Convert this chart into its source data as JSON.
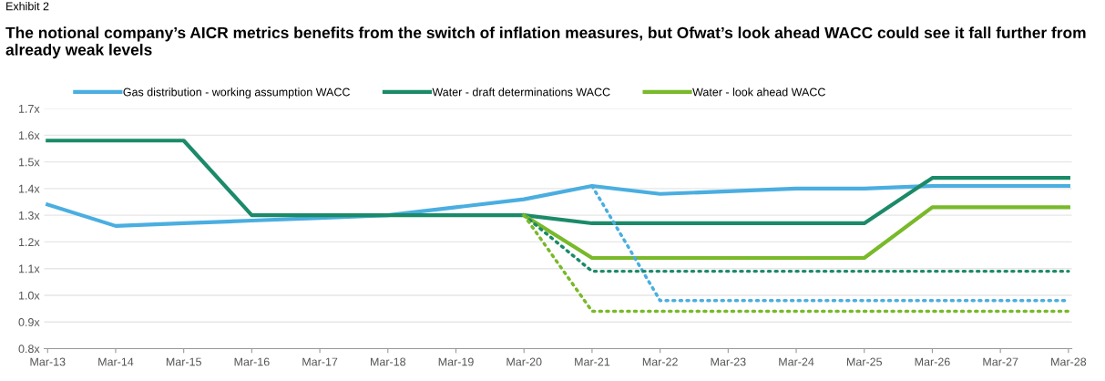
{
  "chart_data": {
    "type": "line",
    "title": "The notional company’s AICR metrics benefits from the switch of inflation measures, but Ofwat’s look ahead WACC could see it fall further from already weak levels",
    "annotations": [
      "Exhibit 2"
    ],
    "categories": [
      "Mar-13",
      "Mar-14",
      "Mar-15",
      "Mar-16",
      "Mar-17",
      "Mar-18",
      "Mar-19",
      "Mar-20",
      "Mar-21",
      "Mar-22",
      "Mar-23",
      "Mar-24",
      "Mar-25",
      "Mar-26",
      "Mar-27",
      "Mar-28"
    ],
    "series": [
      {
        "name": "Gas distribution - working assumption WACC",
        "color": "#4aaee0",
        "line_style": "solid",
        "values": [
          1.34,
          1.26,
          1.27,
          1.28,
          1.29,
          1.3,
          1.33,
          1.36,
          1.41,
          1.38,
          1.39,
          1.4,
          1.4,
          1.41,
          1.41,
          1.41
        ]
      },
      {
        "name": "Water - draft determinations WACC",
        "color": "#1b8a68",
        "line_style": "solid",
        "values": [
          1.58,
          1.58,
          1.58,
          1.3,
          1.3,
          1.3,
          1.3,
          1.3,
          1.27,
          1.27,
          1.27,
          1.27,
          1.27,
          1.44,
          1.44,
          1.44
        ]
      },
      {
        "name": "Water - look ahead WACC",
        "color": "#79b92a",
        "line_style": "solid",
        "values": [
          null,
          null,
          null,
          null,
          null,
          null,
          null,
          1.3,
          1.14,
          1.14,
          1.14,
          1.14,
          1.14,
          1.33,
          1.33,
          1.33
        ]
      },
      {
        "color": "#4aaee0",
        "line_style": "dotted",
        "values": [
          null,
          null,
          null,
          null,
          null,
          null,
          null,
          null,
          1.41,
          0.98,
          0.98,
          0.98,
          0.98,
          0.98,
          0.98,
          0.98
        ]
      },
      {
        "color": "#1b8a68",
        "line_style": "dotted",
        "values": [
          null,
          null,
          null,
          null,
          null,
          null,
          null,
          1.3,
          1.09,
          1.09,
          1.09,
          1.09,
          1.09,
          1.09,
          1.09,
          1.09
        ]
      },
      {
        "color": "#79b92a",
        "line_style": "dotted",
        "values": [
          null,
          null,
          null,
          null,
          null,
          null,
          null,
          1.3,
          0.94,
          0.94,
          0.94,
          0.94,
          0.94,
          0.94,
          0.94,
          0.94
        ]
      }
    ],
    "ylim": [
      0.8,
      1.7
    ],
    "yticks": [
      {
        "value": 0.8,
        "label": "0.8x"
      },
      {
        "value": 0.9,
        "label": "0.9x"
      },
      {
        "value": 1.0,
        "label": "1.0x"
      },
      {
        "value": 1.1,
        "label": "1.1x"
      },
      {
        "value": 1.2,
        "label": "1.2x"
      },
      {
        "value": 1.3,
        "label": "1.3x"
      },
      {
        "value": 1.4,
        "label": "1.4x"
      },
      {
        "value": 1.5,
        "label": "1.5x"
      },
      {
        "value": 1.6,
        "label": "1.6x"
      },
      {
        "value": 1.7,
        "label": "1.7x"
      }
    ],
    "grid": "y",
    "legend": "top",
    "marker": "none"
  }
}
